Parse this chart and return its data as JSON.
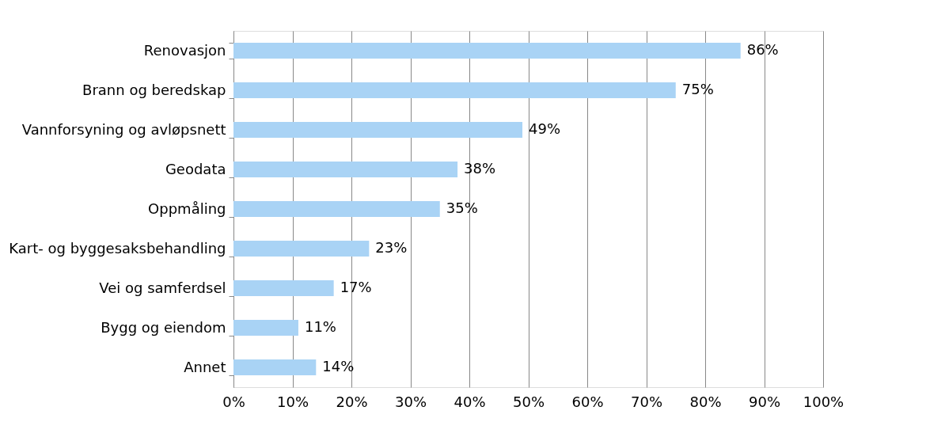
{
  "chart_data": {
    "type": "bar",
    "orientation": "horizontal",
    "categories": [
      "Renovasjon",
      "Brann og beredskap",
      "Vannforsyning og avløpsnett",
      "Geodata",
      "Oppmåling",
      "Kart- og byggesaksbehandling",
      "Vei og samferdsel",
      "Bygg og eiendom",
      "Annet"
    ],
    "values": [
      86,
      75,
      49,
      38,
      35,
      23,
      17,
      11,
      14
    ],
    "value_labels": [
      "86%",
      "75%",
      "49%",
      "38%",
      "35%",
      "23%",
      "17%",
      "11%",
      "14%"
    ],
    "color": "#a9d3f5",
    "xlim": [
      0,
      100
    ],
    "xticks": [
      {
        "value": 0,
        "label": "0%"
      },
      {
        "value": 10,
        "label": "10%"
      },
      {
        "value": 20,
        "label": "20%"
      },
      {
        "value": 30,
        "label": "30%"
      },
      {
        "value": 40,
        "label": "40%"
      },
      {
        "value": 50,
        "label": "50%"
      },
      {
        "value": 60,
        "label": "60%"
      },
      {
        "value": 70,
        "label": "70%"
      },
      {
        "value": 80,
        "label": "80%"
      },
      {
        "value": 90,
        "label": "90%"
      },
      {
        "value": 100,
        "label": "100%"
      }
    ],
    "grid": "x"
  }
}
